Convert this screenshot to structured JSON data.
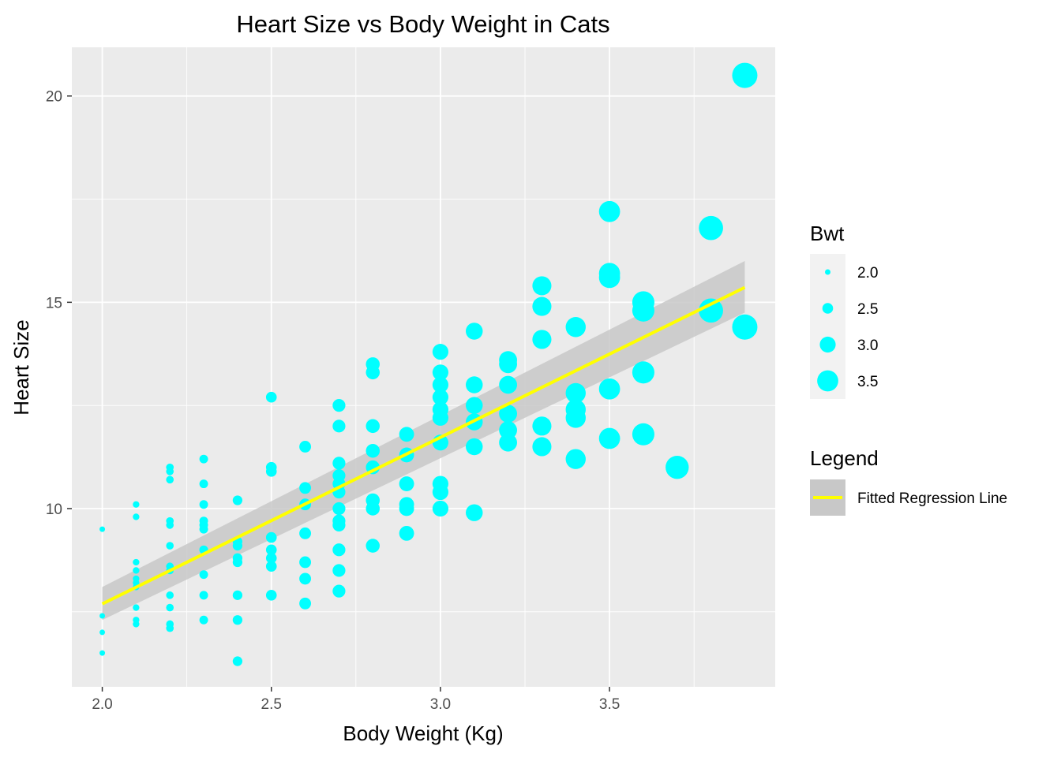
{
  "chart_data": {
    "type": "scatter",
    "title": "Heart Size vs Body Weight in Cats",
    "xlabel": "Body Weight (Kg)",
    "ylabel": "Heart Size",
    "xlim": [
      1.91,
      3.99
    ],
    "ylim": [
      5.68,
      21.18
    ],
    "x_ticks": [
      2.0,
      2.5,
      3.0,
      3.5
    ],
    "x_tick_labels": [
      "2.0",
      "2.5",
      "3.0",
      "3.5"
    ],
    "y_ticks": [
      10,
      15,
      20
    ],
    "y_tick_labels": [
      "10",
      "15",
      "20"
    ],
    "grid": true,
    "panel_background": "#ebebeb",
    "point_color": "#00ffff",
    "line_color": "#ffff00",
    "band_color": "#c8c8c8",
    "series": [
      {
        "points": [
          [
            2.0,
            6.5
          ],
          [
            2.0,
            7.0
          ],
          [
            2.0,
            7.4
          ],
          [
            2.0,
            9.5
          ],
          [
            2.1,
            7.2
          ],
          [
            2.1,
            7.3
          ],
          [
            2.1,
            7.6
          ],
          [
            2.1,
            8.1
          ],
          [
            2.1,
            8.2
          ],
          [
            2.1,
            8.3
          ],
          [
            2.1,
            8.5
          ],
          [
            2.1,
            8.7
          ],
          [
            2.1,
            9.8
          ],
          [
            2.1,
            10.1
          ],
          [
            2.2,
            7.1
          ],
          [
            2.2,
            7.2
          ],
          [
            2.2,
            7.6
          ],
          [
            2.2,
            7.9
          ],
          [
            2.2,
            8.5
          ],
          [
            2.2,
            8.6
          ],
          [
            2.2,
            9.1
          ],
          [
            2.2,
            9.6
          ],
          [
            2.2,
            9.7
          ],
          [
            2.2,
            10.7
          ],
          [
            2.2,
            10.9
          ],
          [
            2.2,
            11.0
          ],
          [
            2.3,
            7.3
          ],
          [
            2.3,
            7.9
          ],
          [
            2.3,
            8.4
          ],
          [
            2.3,
            9.0
          ],
          [
            2.3,
            9.0
          ],
          [
            2.3,
            9.5
          ],
          [
            2.3,
            9.6
          ],
          [
            2.3,
            9.7
          ],
          [
            2.3,
            10.1
          ],
          [
            2.3,
            10.6
          ],
          [
            2.3,
            11.2
          ],
          [
            2.4,
            6.3
          ],
          [
            2.4,
            7.3
          ],
          [
            2.4,
            7.9
          ],
          [
            2.4,
            8.7
          ],
          [
            2.4,
            8.8
          ],
          [
            2.4,
            9.1
          ],
          [
            2.4,
            9.2
          ],
          [
            2.4,
            10.2
          ],
          [
            2.5,
            7.9
          ],
          [
            2.5,
            8.6
          ],
          [
            2.5,
            8.8
          ],
          [
            2.5,
            9.0
          ],
          [
            2.5,
            9.3
          ],
          [
            2.5,
            10.9
          ],
          [
            2.5,
            11.0
          ],
          [
            2.5,
            12.7
          ],
          [
            2.6,
            7.7
          ],
          [
            2.6,
            8.3
          ],
          [
            2.6,
            8.7
          ],
          [
            2.6,
            9.4
          ],
          [
            2.6,
            10.1
          ],
          [
            2.6,
            10.5
          ],
          [
            2.6,
            11.5
          ],
          [
            2.7,
            8.0
          ],
          [
            2.7,
            8.5
          ],
          [
            2.7,
            9.0
          ],
          [
            2.7,
            9.6
          ],
          [
            2.7,
            9.7
          ],
          [
            2.7,
            10.0
          ],
          [
            2.7,
            10.4
          ],
          [
            2.7,
            10.6
          ],
          [
            2.7,
            10.8
          ],
          [
            2.7,
            11.1
          ],
          [
            2.7,
            12.0
          ],
          [
            2.7,
            12.5
          ],
          [
            2.8,
            9.1
          ],
          [
            2.8,
            10.0
          ],
          [
            2.8,
            10.2
          ],
          [
            2.8,
            11.0
          ],
          [
            2.8,
            11.4
          ],
          [
            2.8,
            12.0
          ],
          [
            2.8,
            13.3
          ],
          [
            2.8,
            13.5
          ],
          [
            2.9,
            9.4
          ],
          [
            2.9,
            10.0
          ],
          [
            2.9,
            10.1
          ],
          [
            2.9,
            10.6
          ],
          [
            2.9,
            11.3
          ],
          [
            2.9,
            11.8
          ],
          [
            3.0,
            10.0
          ],
          [
            3.0,
            10.4
          ],
          [
            3.0,
            10.6
          ],
          [
            3.0,
            11.6
          ],
          [
            3.0,
            12.2
          ],
          [
            3.0,
            12.4
          ],
          [
            3.0,
            12.7
          ],
          [
            3.0,
            13.0
          ],
          [
            3.0,
            13.3
          ],
          [
            3.0,
            13.8
          ],
          [
            3.1,
            9.9
          ],
          [
            3.1,
            11.5
          ],
          [
            3.1,
            12.1
          ],
          [
            3.1,
            12.5
          ],
          [
            3.1,
            13.0
          ],
          [
            3.1,
            14.3
          ],
          [
            3.2,
            11.6
          ],
          [
            3.2,
            11.9
          ],
          [
            3.2,
            12.3
          ],
          [
            3.2,
            13.0
          ],
          [
            3.2,
            13.5
          ],
          [
            3.2,
            13.6
          ],
          [
            3.3,
            11.5
          ],
          [
            3.3,
            12.0
          ],
          [
            3.3,
            14.1
          ],
          [
            3.3,
            14.9
          ],
          [
            3.3,
            15.4
          ],
          [
            3.4,
            11.2
          ],
          [
            3.4,
            12.2
          ],
          [
            3.4,
            12.4
          ],
          [
            3.4,
            12.8
          ],
          [
            3.4,
            14.4
          ],
          [
            3.5,
            11.7
          ],
          [
            3.5,
            12.9
          ],
          [
            3.5,
            15.6
          ],
          [
            3.5,
            15.7
          ],
          [
            3.5,
            17.2
          ],
          [
            3.6,
            11.8
          ],
          [
            3.6,
            13.3
          ],
          [
            3.6,
            14.8
          ],
          [
            3.6,
            15.0
          ],
          [
            3.7,
            11.0
          ],
          [
            3.8,
            14.8
          ],
          [
            3.8,
            16.8
          ],
          [
            3.9,
            14.4
          ],
          [
            3.9,
            20.5
          ]
        ]
      }
    ],
    "regression": {
      "x": [
        2.0,
        3.9
      ],
      "y": [
        7.69,
        15.36
      ],
      "ci_lower": [
        7.3,
        14.75
      ],
      "ci_upper": [
        8.1,
        16.0
      ]
    },
    "size_legend": {
      "title": "Bwt",
      "entries": [
        {
          "value": 2.0,
          "label": "2.0"
        },
        {
          "value": 2.5,
          "label": "2.5"
        },
        {
          "value": 3.0,
          "label": "3.0"
        },
        {
          "value": 3.5,
          "label": "3.5"
        }
      ]
    },
    "line_legend": {
      "title": "Legend",
      "label": "Fitted Regression Line"
    },
    "legend_placement": "right"
  }
}
